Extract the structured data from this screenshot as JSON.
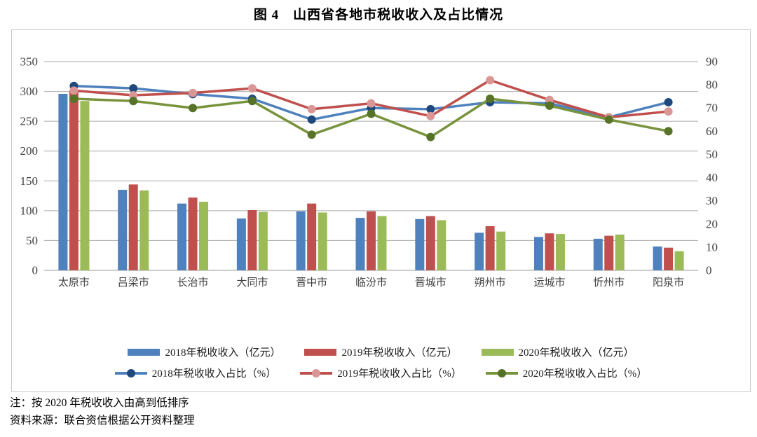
{
  "title": "图 4　山西省各地市税收收入及占比情况",
  "notes": {
    "sort": "注：按 2020 年税收收入由高到低排序",
    "source": "资料来源：联合资信根据公开资料整理"
  },
  "colors": {
    "bar_2018": "#4F81BD",
    "bar_2019": "#C0504D",
    "bar_2020": "#9BBB59",
    "line_2018": "#4F81BD",
    "marker_2018": "#1F497D",
    "line_2019": "#C0504D",
    "marker_2019": "#D99694",
    "line_2020": "#77933C",
    "marker_2020": "#567327",
    "grid": "#aaaaaa",
    "axis_text": "#3f3f3f",
    "box_border": "#c9c9c9"
  },
  "chart_data": {
    "type": "bar",
    "subtype": "grouped bars (left axis) + lines with markers (right axis)",
    "title": "图 4　山西省各地市税收收入及占比情况",
    "categories": [
      "太原市",
      "吕梁市",
      "长治市",
      "大同市",
      "晋中市",
      "临汾市",
      "晋城市",
      "朔州市",
      "运城市",
      "忻州市",
      "阳泉市"
    ],
    "series": [
      {
        "name": "2018年税收收入（亿元）",
        "kind": "bar",
        "axis": "left",
        "color": "#4F81BD",
        "values": [
          296,
          135,
          112,
          87,
          99,
          88,
          86,
          63,
          56,
          53,
          40
        ]
      },
      {
        "name": "2019年税收收入（亿元）",
        "kind": "bar",
        "axis": "left",
        "color": "#C0504D",
        "values": [
          302,
          144,
          122,
          101,
          112,
          99,
          91,
          74,
          62,
          58,
          38
        ]
      },
      {
        "name": "2020年税收收入（亿元）",
        "kind": "bar",
        "axis": "left",
        "color": "#9BBB59",
        "values": [
          284,
          134,
          115,
          98,
          97,
          91,
          84,
          65,
          61,
          60,
          32
        ]
      },
      {
        "name": "2018年税收收入占比（%）",
        "kind": "line",
        "axis": "right",
        "color": "#4F81BD",
        "marker": "#1F497D",
        "values": [
          79.5,
          78.5,
          76,
          74,
          65,
          70,
          69.5,
          72.5,
          72,
          66,
          72.5
        ]
      },
      {
        "name": "2019年税收收入占比（%）",
        "kind": "line",
        "axis": "right",
        "color": "#C0504D",
        "marker": "#D99694",
        "values": [
          77.5,
          75.5,
          76.5,
          78.5,
          69.5,
          72,
          66.5,
          82,
          73.5,
          66,
          68.5
        ]
      },
      {
        "name": "2020年税收收入占比（%）",
        "kind": "line",
        "axis": "right",
        "color": "#77933C",
        "marker": "#567327",
        "values": [
          74,
          73,
          70,
          73,
          58.5,
          67.5,
          57.5,
          74,
          71,
          65,
          60
        ]
      }
    ],
    "left_axis": {
      "min": 0,
      "max": 350,
      "step": 50,
      "tick_labels": [
        "0",
        "50",
        "100",
        "150",
        "200",
        "250",
        "300",
        "350"
      ]
    },
    "right_axis": {
      "min": 0,
      "max": 90,
      "step": 10,
      "tick_labels": [
        "0",
        "10",
        "20",
        "30",
        "40",
        "50",
        "60",
        "70",
        "80",
        "90"
      ]
    },
    "grid": "horizontal gridlines at left-axis ticks",
    "legend_position": "bottom, two rows"
  }
}
